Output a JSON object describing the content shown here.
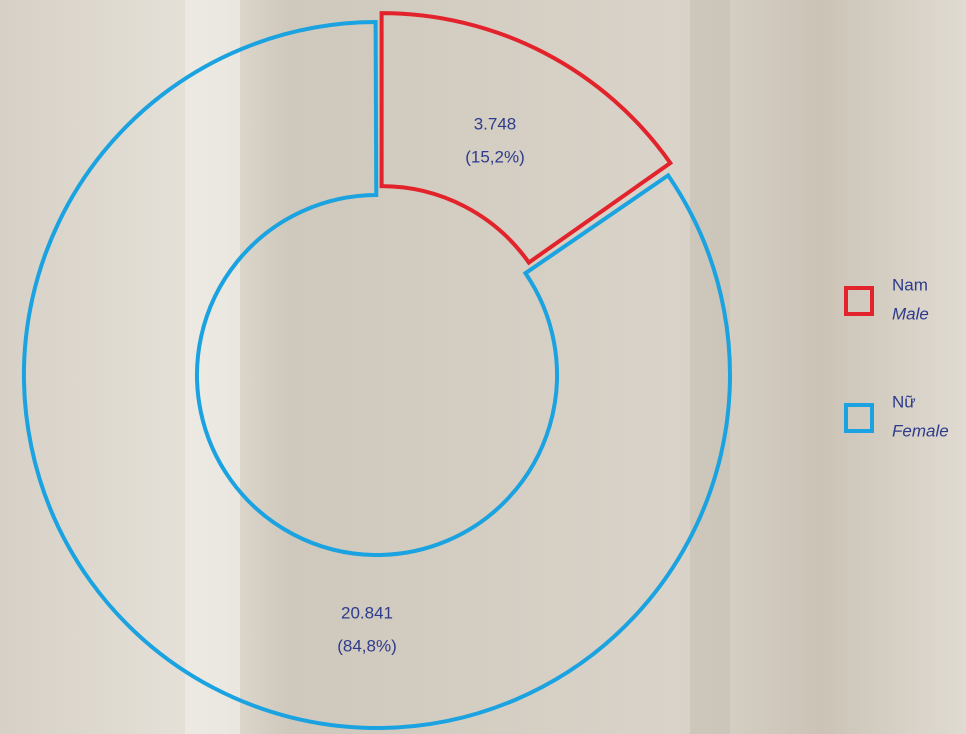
{
  "chart_data": {
    "type": "donut",
    "categories": [
      "Nam",
      "Nữ"
    ],
    "categories_en": [
      "Male",
      "Female"
    ],
    "values": [
      3748,
      20841
    ],
    "value_labels": [
      "3.748",
      "20.841"
    ],
    "share_labels": [
      "(15,2%)",
      "(84,8%)"
    ],
    "colors": [
      "#e3232b",
      "#1aa3e0"
    ]
  }
}
